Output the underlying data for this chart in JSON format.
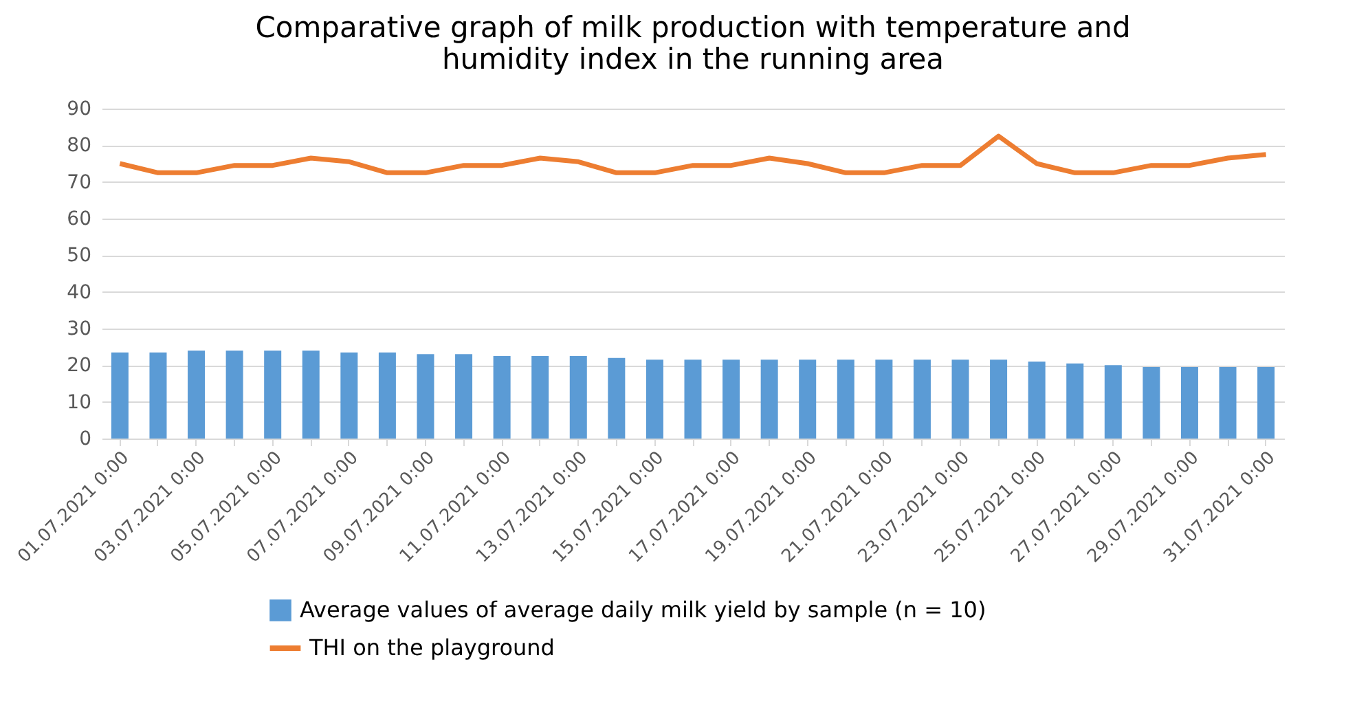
{
  "chart_data": {
    "type": "bar",
    "title": [
      "Comparative graph of milk production with temperature and",
      "humidity index in the running area"
    ],
    "categories": [
      "01.07.2021 0:00",
      null,
      "03.07.2021 0:00",
      null,
      "05.07.2021 0:00",
      null,
      "07.07.2021 0:00",
      null,
      "09.07.2021 0:00",
      null,
      "11.07.2021 0:00",
      null,
      "13.07.2021 0:00",
      null,
      "15.07.2021 0:00",
      null,
      "17.07.2021 0:00",
      null,
      "19.07.2021 0:00",
      null,
      "21.07.2021 0:00",
      null,
      "23.07.2021 0:00",
      null,
      "25.07.2021 0:00",
      null,
      "27.07.2021 0:00",
      null,
      "29.07.2021 0:00",
      null,
      "31.07.2021 0:00"
    ],
    "series": [
      {
        "name": "Average values of average daily milk yield by sample (n = 10)",
        "color": "#5b9bd5",
        "values": [
          23.5,
          23.5,
          24,
          24,
          24,
          24,
          23.5,
          23.5,
          23,
          23,
          22.5,
          22.5,
          22.5,
          22,
          21.5,
          21.5,
          21.5,
          21.5,
          21.5,
          21.5,
          21.5,
          21.5,
          21.5,
          21.5,
          21,
          20.5,
          20,
          19.5,
          19.5,
          19.5,
          19.5
        ]
      },
      {
        "name": "THI on the playground",
        "type": "line",
        "color": "#ed7d31",
        "values": [
          75,
          72.5,
          72.5,
          74.5,
          74.5,
          76.5,
          75.5,
          72.5,
          72.5,
          74.5,
          74.5,
          76.5,
          75.5,
          72.5,
          72.5,
          74.5,
          74.5,
          76.5,
          75,
          72.5,
          72.5,
          74.5,
          74.5,
          82.5,
          75,
          72.5,
          72.5,
          74.5,
          74.5,
          76.5,
          77.5
        ]
      }
    ],
    "ylim": [
      0,
      90
    ],
    "yticks": [
      0,
      10,
      20,
      30,
      40,
      50,
      60,
      70,
      80,
      90
    ],
    "grid": "y",
    "legend": "bottom"
  }
}
